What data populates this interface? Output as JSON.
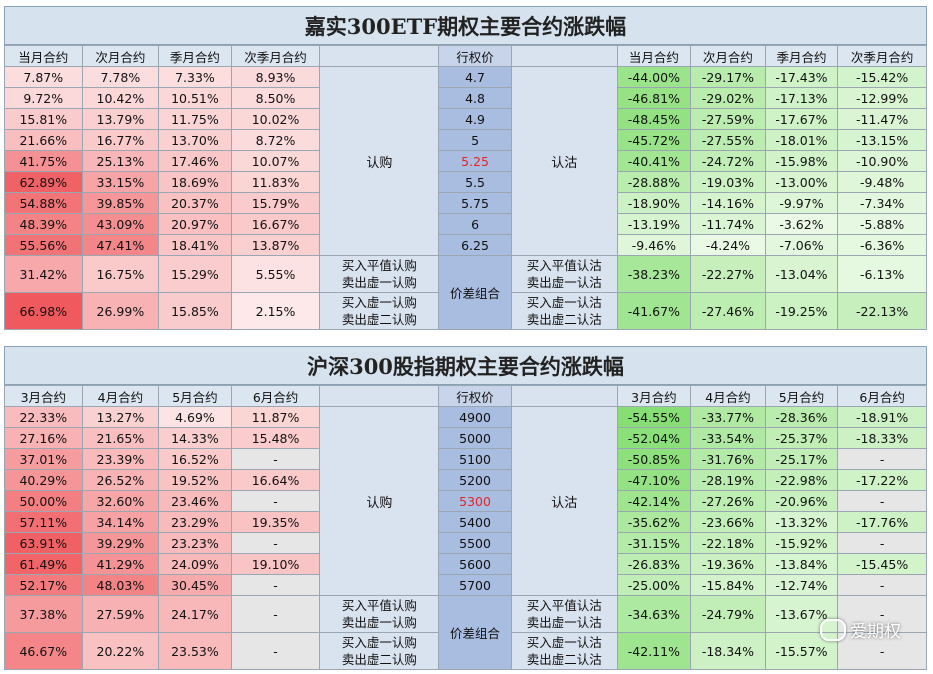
{
  "panel1": {
    "title": "嘉实300ETF期权主要合约涨跌幅",
    "call_headers": [
      "当月合约",
      "次月合约",
      "季月合约",
      "次季月合约"
    ],
    "strike_header": "行权价",
    "put_headers": [
      "当月合约",
      "次月合约",
      "季月合约",
      "次季月合约"
    ],
    "call_label": "认购",
    "put_label": "认沽",
    "strikes": [
      "4.7",
      "4.8",
      "4.9",
      "5",
      "5.25",
      "5.5",
      "5.75",
      "6",
      "6.25"
    ],
    "atm_strike": "5.25",
    "calls": [
      [
        "7.87%",
        "7.78%",
        "7.33%",
        "8.93%"
      ],
      [
        "9.72%",
        "10.42%",
        "10.51%",
        "8.50%"
      ],
      [
        "15.81%",
        "13.79%",
        "11.75%",
        "10.02%"
      ],
      [
        "21.66%",
        "16.77%",
        "13.70%",
        "8.72%"
      ],
      [
        "41.75%",
        "25.13%",
        "17.46%",
        "10.07%"
      ],
      [
        "62.89%",
        "33.15%",
        "18.69%",
        "11.83%"
      ],
      [
        "54.88%",
        "39.85%",
        "20.37%",
        "15.79%"
      ],
      [
        "48.39%",
        "43.09%",
        "20.97%",
        "16.67%"
      ],
      [
        "55.56%",
        "47.41%",
        "18.41%",
        "13.87%"
      ]
    ],
    "puts": [
      [
        "-44.00%",
        "-29.17%",
        "-17.43%",
        "-15.42%"
      ],
      [
        "-46.81%",
        "-29.02%",
        "-17.13%",
        "-12.99%"
      ],
      [
        "-48.45%",
        "-27.59%",
        "-17.67%",
        "-11.47%"
      ],
      [
        "-45.72%",
        "-27.55%",
        "-18.01%",
        "-13.15%"
      ],
      [
        "-40.41%",
        "-24.72%",
        "-15.98%",
        "-10.90%"
      ],
      [
        "-28.88%",
        "-19.03%",
        "-13.00%",
        "-9.48%"
      ],
      [
        "-18.90%",
        "-14.16%",
        "-9.97%",
        "-7.34%"
      ],
      [
        "-13.19%",
        "-11.74%",
        "-3.62%",
        "-5.88%"
      ],
      [
        "-9.46%",
        "-4.24%",
        "-7.06%",
        "-6.36%"
      ]
    ],
    "combo_label": "价差组合",
    "combos": [
      {
        "call_desc": "买入平值认购\n卖出虚一认购",
        "put_desc": "买入平值认沽\n卖出虚一认沽",
        "calls": [
          "31.42%",
          "16.75%",
          "15.29%",
          "5.55%"
        ],
        "puts": [
          "-38.23%",
          "-22.27%",
          "-13.04%",
          "-6.13%"
        ]
      },
      {
        "call_desc": "买入虚一认购\n卖出虚二认购",
        "put_desc": "买入虚一认沽\n卖出虚二认沽",
        "calls": [
          "66.98%",
          "26.99%",
          "15.85%",
          "2.15%"
        ],
        "puts": [
          "-41.67%",
          "-27.46%",
          "-19.25%",
          "-22.13%"
        ]
      }
    ]
  },
  "panel2": {
    "title": "沪深300股指期权主要合约涨跌幅",
    "call_headers": [
      "3月合约",
      "4月合约",
      "5月合约",
      "6月合约"
    ],
    "strike_header": "行权价",
    "put_headers": [
      "3月合约",
      "4月合约",
      "5月合约",
      "6月合约"
    ],
    "call_label": "认购",
    "put_label": "认沽",
    "strikes": [
      "4900",
      "5000",
      "5100",
      "5200",
      "5300",
      "5400",
      "5500",
      "5600",
      "5700"
    ],
    "atm_strike": "5300",
    "calls": [
      [
        "22.33%",
        "13.27%",
        "4.69%",
        "11.87%"
      ],
      [
        "27.16%",
        "21.65%",
        "14.33%",
        "15.48%"
      ],
      [
        "37.01%",
        "23.39%",
        "16.52%",
        "-"
      ],
      [
        "40.29%",
        "26.52%",
        "19.52%",
        "16.64%"
      ],
      [
        "50.00%",
        "32.60%",
        "23.46%",
        "-"
      ],
      [
        "57.11%",
        "34.14%",
        "23.29%",
        "19.35%"
      ],
      [
        "63.91%",
        "39.29%",
        "23.23%",
        "-"
      ],
      [
        "61.49%",
        "41.29%",
        "24.09%",
        "19.10%"
      ],
      [
        "52.17%",
        "48.03%",
        "30.45%",
        "-"
      ]
    ],
    "puts": [
      [
        "-54.55%",
        "-33.77%",
        "-28.36%",
        "-18.91%"
      ],
      [
        "-52.04%",
        "-33.54%",
        "-25.37%",
        "-18.33%"
      ],
      [
        "-50.85%",
        "-31.76%",
        "-25.17%",
        "-"
      ],
      [
        "-47.10%",
        "-28.19%",
        "-22.98%",
        "-17.22%"
      ],
      [
        "-42.14%",
        "-27.26%",
        "-20.96%",
        "-"
      ],
      [
        "-35.62%",
        "-23.66%",
        "-13.32%",
        "-17.76%"
      ],
      [
        "-31.15%",
        "-22.18%",
        "-15.92%",
        "-"
      ],
      [
        "-26.83%",
        "-19.36%",
        "-13.84%",
        "-15.45%"
      ],
      [
        "-25.00%",
        "-15.84%",
        "-12.74%",
        "-"
      ]
    ],
    "combo_label": "价差组合",
    "combos": [
      {
        "call_desc": "买入平值认购\n卖出虚一认购",
        "put_desc": "买入平值认沽\n卖出虚一认沽",
        "calls": [
          "37.38%",
          "27.59%",
          "24.17%",
          "-"
        ],
        "puts": [
          "-34.63%",
          "-24.79%",
          "-13.67%",
          "-"
        ]
      },
      {
        "call_desc": "买入虚一认购\n卖出虚二认购",
        "put_desc": "买入虚一认沽\n卖出虚二认沽",
        "calls": [
          "46.67%",
          "20.22%",
          "23.53%",
          "-"
        ],
        "puts": [
          "-42.11%",
          "-18.34%",
          "-15.57%",
          "-"
        ]
      }
    ]
  },
  "colors": {
    "call_heat_low": "#fdeeee",
    "call_heat_high": "#f0575b",
    "put_heat_low": "#f1fbee",
    "put_heat_high": "#86de73",
    "strike_bg": "#a9bde0",
    "atm_text": "#e22525",
    "label_bg": "#d9e2ef",
    "header_bg": "#dbe6f0",
    "na_bg": "#e6e6e6"
  },
  "watermark": {
    "text": "爱期权",
    "icon": "wechat-icon"
  }
}
